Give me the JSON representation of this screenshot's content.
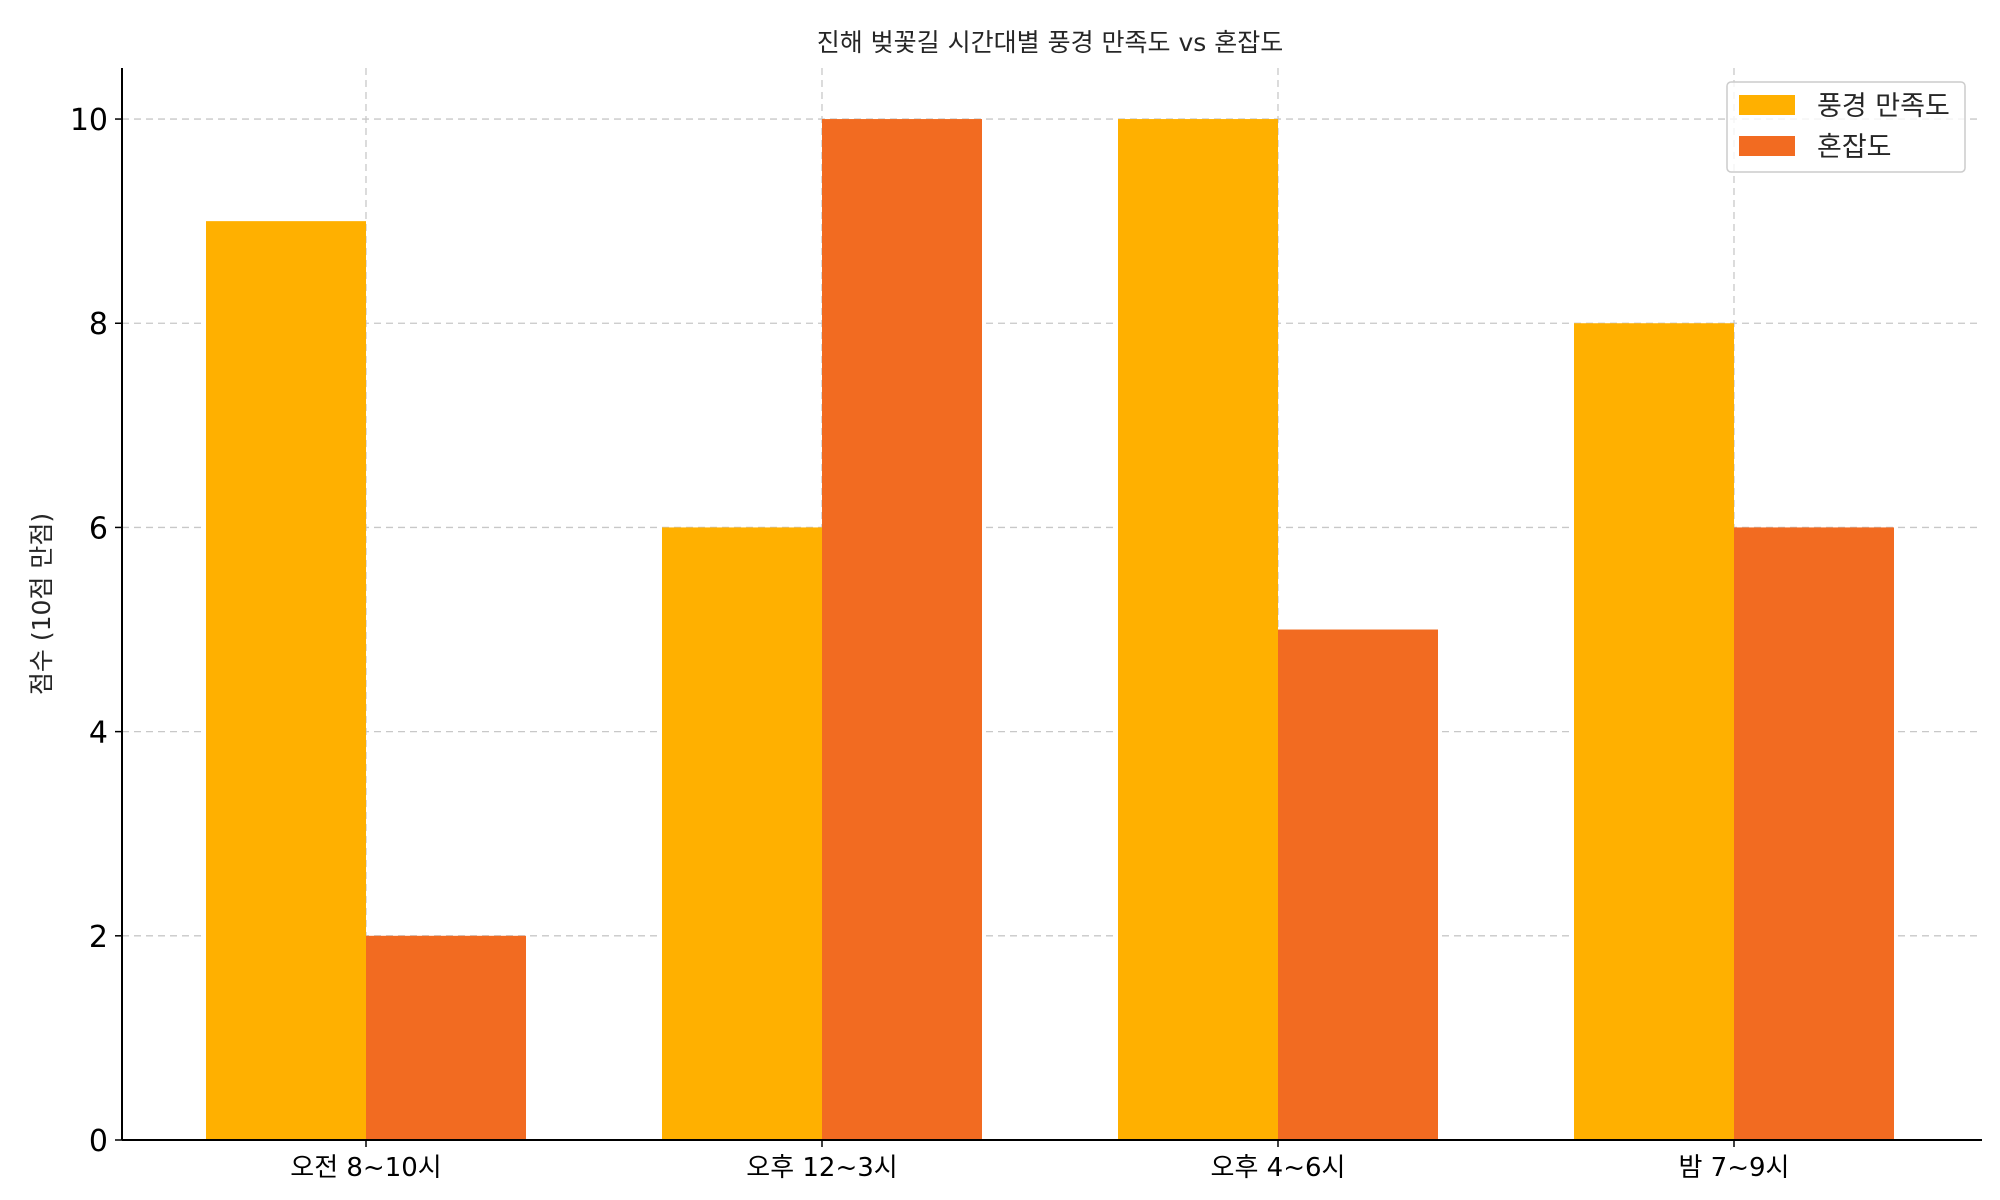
{
  "chart_data": {
    "type": "bar",
    "title": "진해 벚꽃길 시간대별 풍경 만족도 vs 혼잡도",
    "xlabel": "",
    "ylabel": "점수 (10점 만점)",
    "categories": [
      "오전 8~10시",
      "오후 12~3시",
      "오후 4~6시",
      "밤 7~9시"
    ],
    "series": [
      {
        "name": "풍경 만족도",
        "values": [
          9,
          6,
          10,
          8
        ],
        "color": "#FFB000"
      },
      {
        "name": "혼잡도",
        "values": [
          2,
          10,
          5,
          6
        ],
        "color": "#F26B21"
      }
    ],
    "ylim": [
      0,
      10.5
    ],
    "yticks": [
      0,
      2,
      4,
      6,
      8,
      10
    ],
    "grid": true,
    "legend_position": "top-right"
  }
}
